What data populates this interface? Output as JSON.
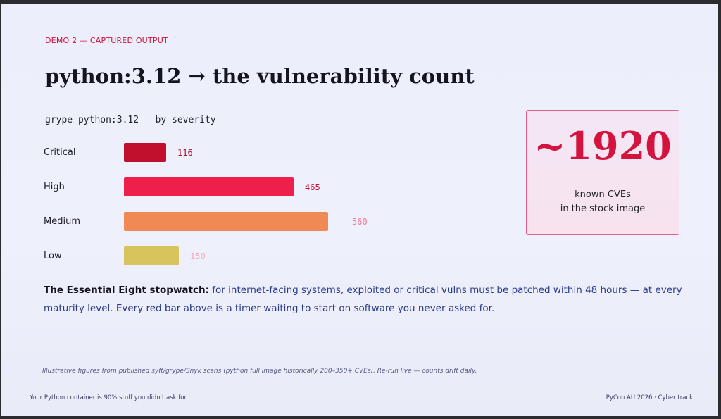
{
  "kicker": "DEMO 2 — CAPTURED OUTPUT",
  "title": "python:3.12 → the vulnerability count",
  "chart_data": {
    "type": "bar",
    "title": "grype python:3.12  –  by severity",
    "categories": [
      "Critical",
      "High",
      "Medium",
      "Low"
    ],
    "values": [
      116,
      465,
      560,
      150
    ],
    "colors": [
      "#c0102e",
      "#ee1f49",
      "#f08a55",
      "#d8c45c"
    ],
    "value_colors": [
      "#b81035",
      "#c8103a",
      "#f2799a",
      "#f2a8b8"
    ],
    "orientation": "horizontal",
    "xlim": [
      0,
      560
    ],
    "xlabel": "",
    "ylabel": ""
  },
  "total": {
    "value": "~1920",
    "caption_line1": "known CVEs",
    "caption_line2": "in the stock image"
  },
  "body": {
    "lead": "The Essential Eight stopwatch:",
    "text": " for internet-facing systems, exploited or critical vulns must be patched within 48 hours — at every maturity level. Every red bar above is a timer waiting to start on software you never asked for."
  },
  "note": "Illustrative figures from published syft/grype/Snyk scans (python full image historically 200–350+ CVEs). Re-run live — counts drift daily.",
  "footer": {
    "left": "Your Python container is 90% stuff you didn't ask for",
    "right": "PyCon AU 2026 · Cyber track"
  }
}
